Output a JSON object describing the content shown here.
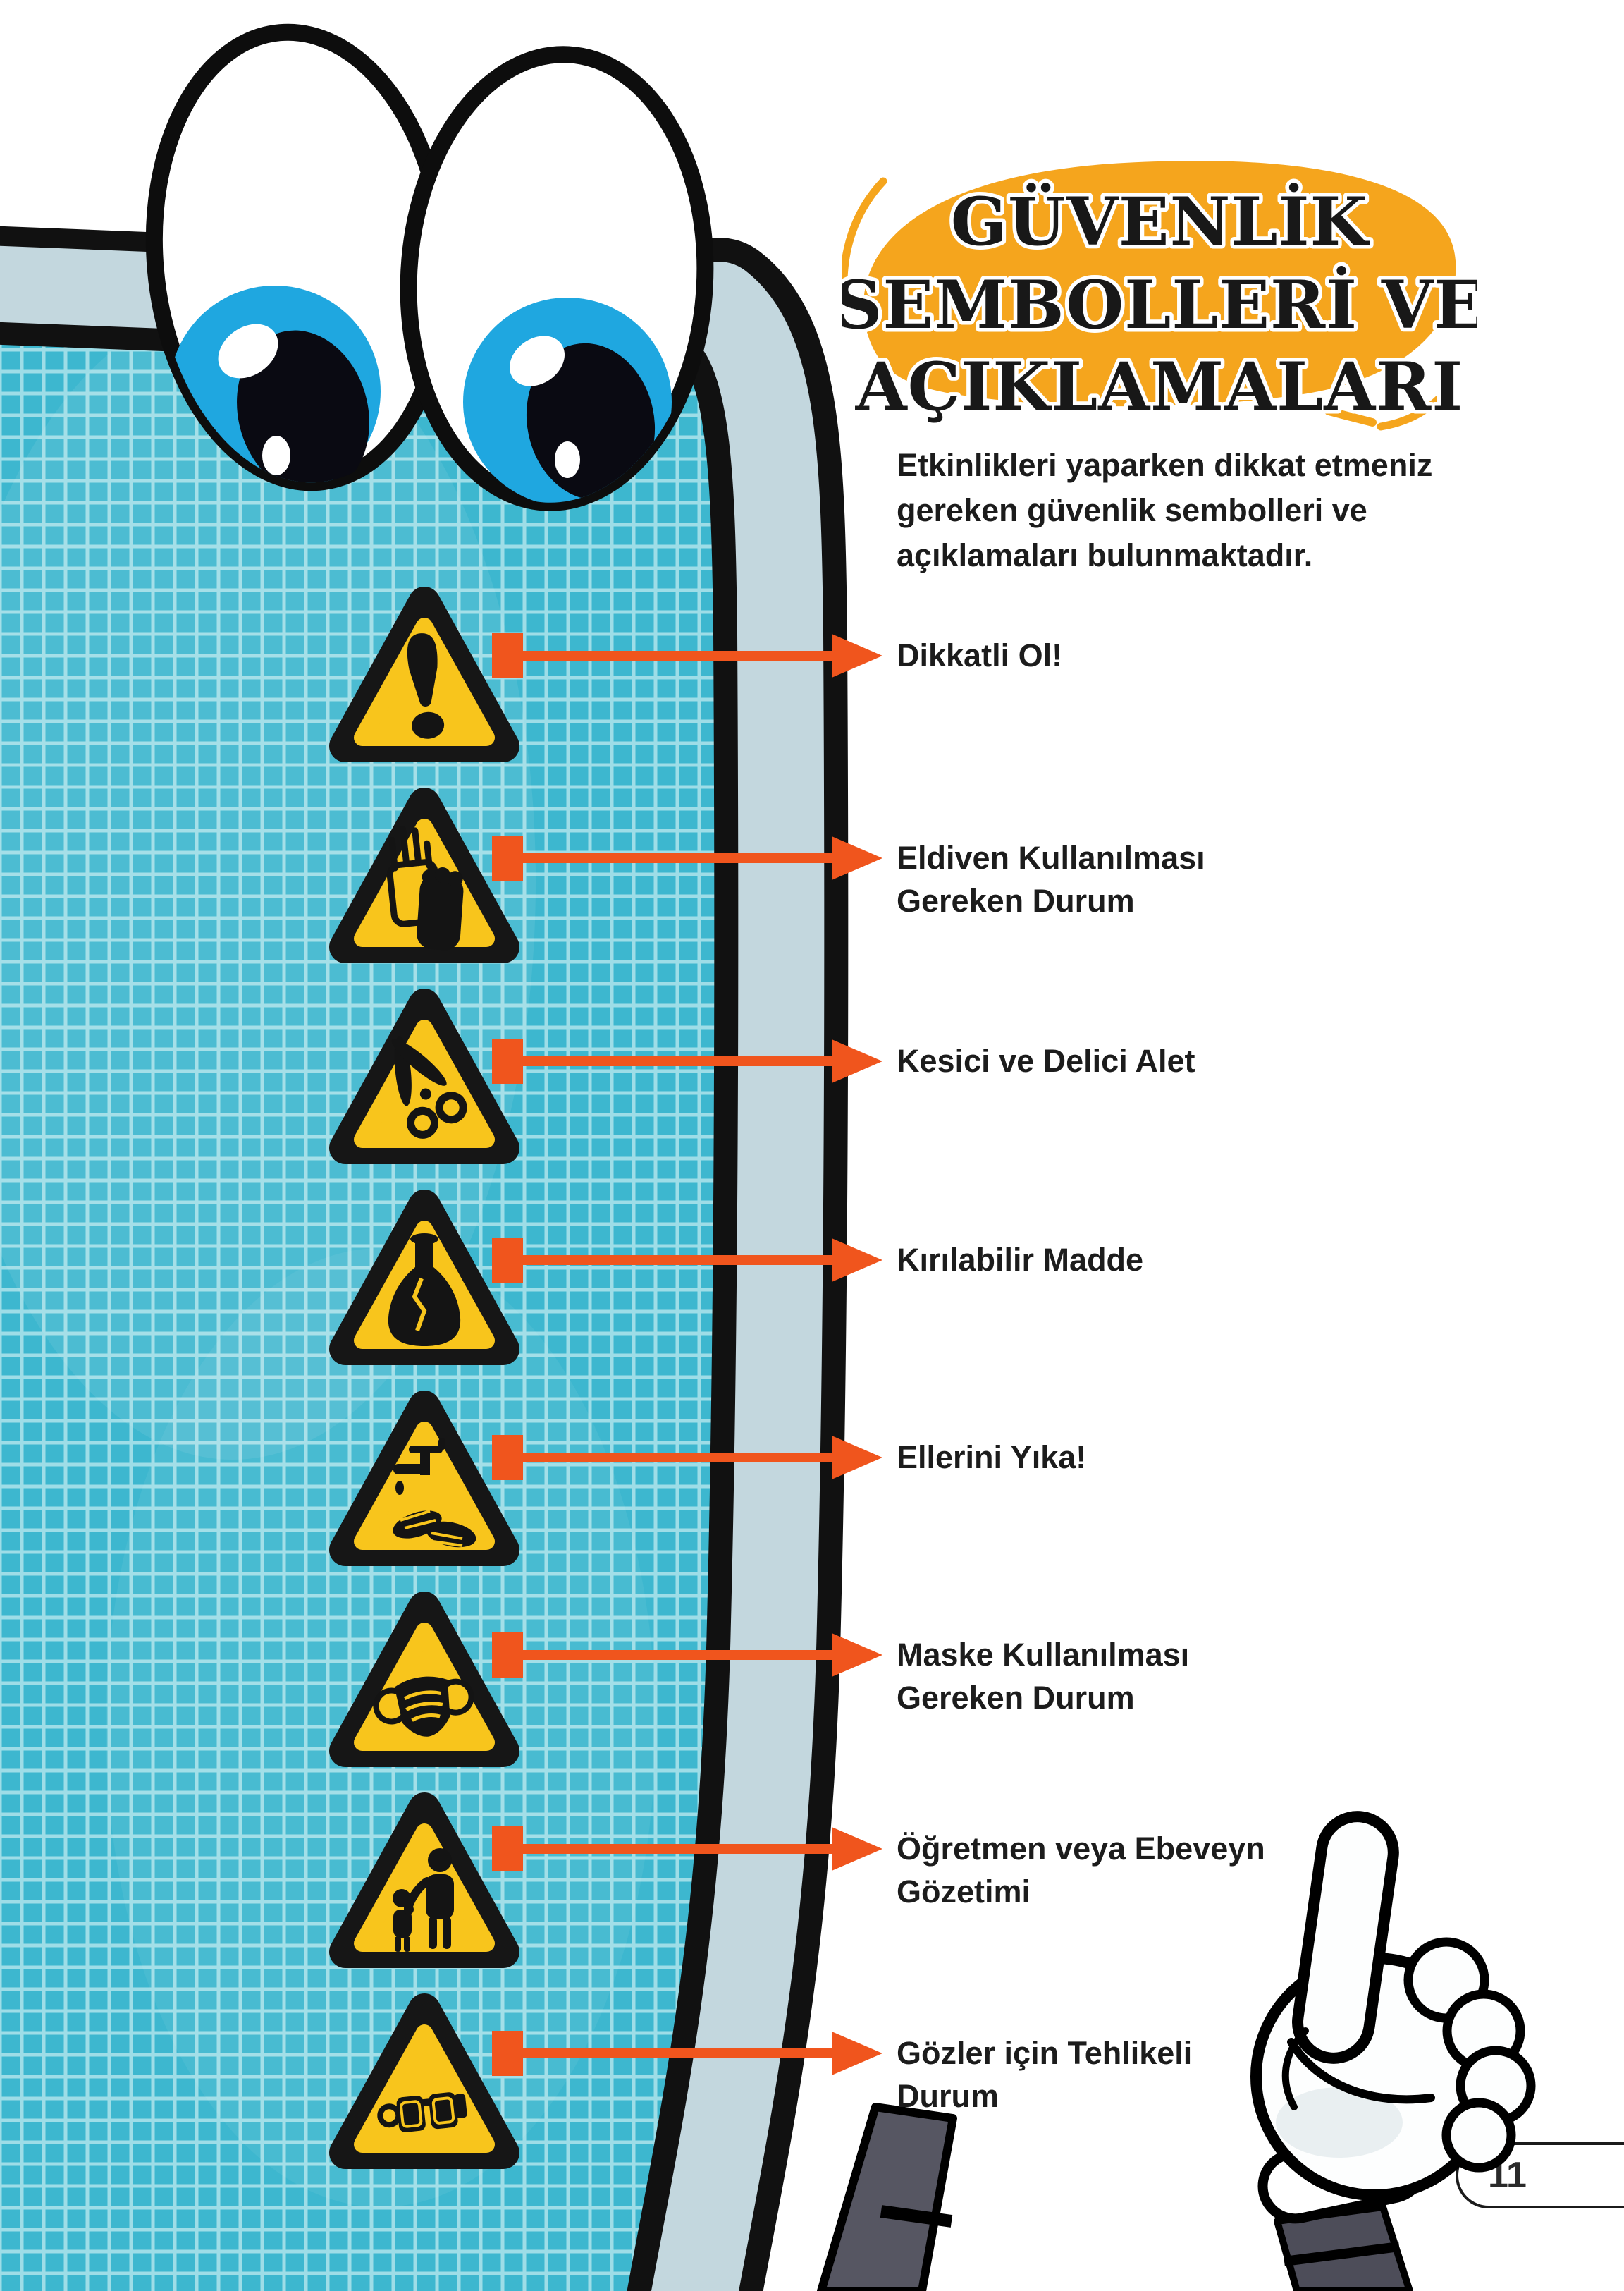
{
  "page": {
    "number": "11"
  },
  "title": {
    "lines": [
      "GÜVENLİK",
      "SEMBOLLERİ VE",
      "AÇIKLAMALARI"
    ]
  },
  "intro": "Etkinlikleri yaparken dikkat etmeniz\ngereken güvenlik sembolleri ve\naçıklamaları bulunmaktadır.",
  "symbols": [
    {
      "icon": "exclamation",
      "label": "Dikkatli Ol!"
    },
    {
      "icon": "gloves",
      "label": "Eldiven Kullanılması\nGereken Durum"
    },
    {
      "icon": "scissors",
      "label": "Kesici ve Delici Alet"
    },
    {
      "icon": "flask",
      "label": "Kırılabilir Madde"
    },
    {
      "icon": "hand-wash",
      "label": "Ellerini Yıka!"
    },
    {
      "icon": "mask",
      "label": "Maske Kullanılması\nGereken Durum"
    },
    {
      "icon": "supervision",
      "label": "Öğretmen veya Ebeveyn\nGözetimi"
    },
    {
      "icon": "goggles",
      "label": "Gözler için Tehlikeli\nDurum"
    }
  ],
  "decorative_icons": [
    "googly-eyes",
    "clipboard-board",
    "easel-leg",
    "pointing-hand"
  ],
  "colors": {
    "board_teal": "#3db7cf",
    "grid_line": "#9edde7",
    "frame_blue": "#c3d7de",
    "arrow_orange": "#f0551d",
    "triangle_yellow": "#F8C51C",
    "bubble_orange": "#F5A51D",
    "eye_blue": "#1fa7e0",
    "ink_black": "#161616"
  }
}
